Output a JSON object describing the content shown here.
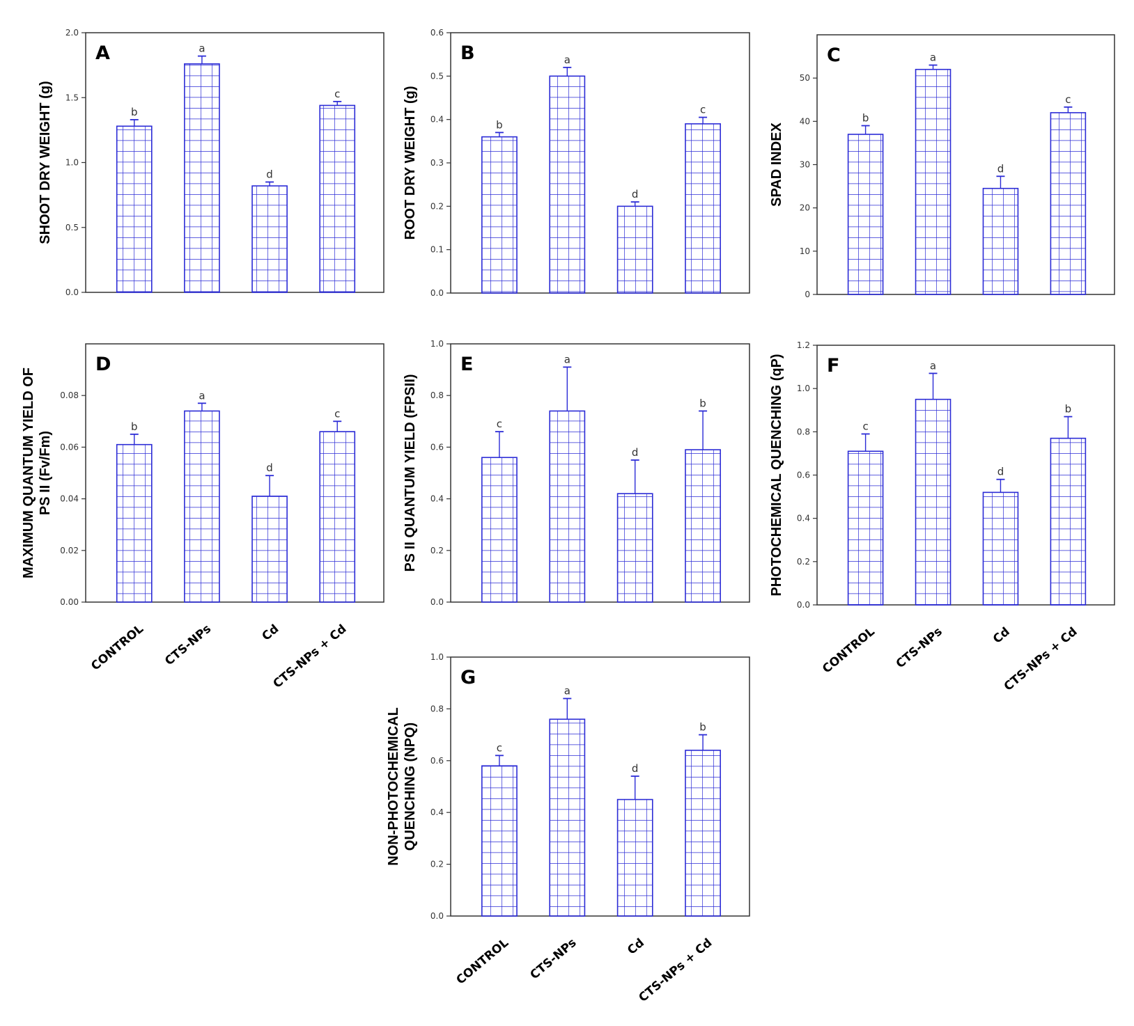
{
  "bar_color": "#2b2bd6",
  "frame_color": "#333333",
  "chart_data": [
    {
      "panel": "A",
      "type": "bar",
      "categories": [
        "CONTROL",
        "CTS-NPs",
        "Cd",
        "CTS-NPs + Cd"
      ],
      "values": [
        1.28,
        1.76,
        0.82,
        1.44
      ],
      "errors": [
        0.05,
        0.06,
        0.03,
        0.03
      ],
      "letters": [
        "b",
        "a",
        "d",
        "c"
      ],
      "ylabel": [
        "SHOOT DRY WEIGHT (g)"
      ],
      "ylim": [
        0,
        2.0
      ],
      "yticks": [
        0,
        0.5,
        1.0,
        1.5,
        2.0
      ],
      "ytick_labels": [
        "0.0",
        "0.5",
        "1.0",
        "1.5",
        "2.0"
      ],
      "show_xticklabels": false
    },
    {
      "panel": "B",
      "type": "bar",
      "categories": [
        "CONTROL",
        "CTS-NPs",
        "Cd",
        "CTS-NPs + Cd"
      ],
      "values": [
        0.36,
        0.5,
        0.2,
        0.39
      ],
      "errors": [
        0.01,
        0.02,
        0.01,
        0.015
      ],
      "letters": [
        "b",
        "a",
        "d",
        "c"
      ],
      "ylabel": [
        "ROOT DRY WEIGHT (g)"
      ],
      "ylim": [
        0,
        0.6
      ],
      "yticks": [
        0,
        0.1,
        0.2,
        0.3,
        0.4,
        0.5,
        0.6
      ],
      "ytick_labels": [
        "0.0",
        "0.1",
        "0.2",
        "0.3",
        "0.4",
        "0.5",
        "0.6"
      ],
      "show_xticklabels": false
    },
    {
      "panel": "C",
      "type": "bar",
      "categories": [
        "CONTROL",
        "CTS-NPs",
        "Cd",
        "CTS-NPs + Cd"
      ],
      "values": [
        37,
        52,
        24.5,
        42
      ],
      "errors": [
        2,
        1,
        2.8,
        1.3
      ],
      "letters": [
        "b",
        "a",
        "d",
        "c"
      ],
      "ylabel": [
        "SPAD INDEX"
      ],
      "ylim": [
        0,
        60
      ],
      "yticks": [
        0,
        10,
        20,
        30,
        40,
        50
      ],
      "ytick_labels": [
        "0",
        "10",
        "20",
        "30",
        "40",
        "50"
      ],
      "show_xticklabels": false
    },
    {
      "panel": "D",
      "type": "bar",
      "categories": [
        "CONTROL",
        "CTS-NPs",
        "Cd",
        "CTS-NPs + Cd"
      ],
      "values": [
        0.061,
        0.074,
        0.041,
        0.066
      ],
      "errors": [
        0.004,
        0.003,
        0.008,
        0.004
      ],
      "letters": [
        "b",
        "a",
        "d",
        "c"
      ],
      "ylabel": [
        "MAXIMUM QUANTUM YIELD OF",
        "PS II (Fv/Fm)"
      ],
      "ylim": [
        0,
        0.1
      ],
      "yticks": [
        0,
        0.02,
        0.04,
        0.06,
        0.08
      ],
      "ytick_labels": [
        "0.00",
        "0.02",
        "0.04",
        "0.06",
        "0.08"
      ],
      "show_xticklabels": true
    },
    {
      "panel": "E",
      "type": "bar",
      "categories": [
        "CONTROL",
        "CTS-NPs",
        "Cd",
        "CTS-NPs + Cd"
      ],
      "values": [
        0.56,
        0.74,
        0.42,
        0.59
      ],
      "errors": [
        0.1,
        0.17,
        0.13,
        0.15
      ],
      "letters": [
        "c",
        "a",
        "d",
        "b"
      ],
      "ylabel": [
        "PS II QUANTUM YIELD (FPSII)"
      ],
      "ylim": [
        0,
        1.0
      ],
      "yticks": [
        0,
        0.2,
        0.4,
        0.6,
        0.8,
        1.0
      ],
      "ytick_labels": [
        "0.0",
        "0.2",
        "0.4",
        "0.6",
        "0.8",
        "1.0"
      ],
      "show_xticklabels": false
    },
    {
      "panel": "F",
      "type": "bar",
      "categories": [
        "CONTROL",
        "CTS-NPs",
        "Cd",
        "CTS-NPs + Cd"
      ],
      "values": [
        0.71,
        0.95,
        0.52,
        0.77
      ],
      "errors": [
        0.08,
        0.12,
        0.06,
        0.1
      ],
      "letters": [
        "c",
        "a",
        "d",
        "b"
      ],
      "ylabel": [
        "PHOTOCHEMICAL QUENCHING (qP)"
      ],
      "ylim": [
        0,
        1.2
      ],
      "yticks": [
        0,
        0.2,
        0.4,
        0.6,
        0.8,
        1.0,
        1.2
      ],
      "ytick_labels": [
        "0.0",
        "0.2",
        "0.4",
        "0.6",
        "0.8",
        "1.0",
        "1.2"
      ],
      "show_xticklabels": true
    },
    {
      "panel": "G",
      "type": "bar",
      "categories": [
        "CONTROL",
        "CTS-NPs",
        "Cd",
        "CTS-NPs + Cd"
      ],
      "values": [
        0.58,
        0.76,
        0.45,
        0.64
      ],
      "errors": [
        0.04,
        0.08,
        0.09,
        0.06
      ],
      "letters": [
        "c",
        "a",
        "d",
        "b"
      ],
      "ylabel": [
        "NON-PHOTOCHEMICAL",
        "QUENCHING (NPQ)"
      ],
      "ylim": [
        0,
        1.0
      ],
      "yticks": [
        0,
        0.2,
        0.4,
        0.6,
        0.8,
        1.0
      ],
      "ytick_labels": [
        "0.0",
        "0.2",
        "0.4",
        "0.6",
        "0.8",
        "1.0"
      ],
      "show_xticklabels": true
    }
  ]
}
